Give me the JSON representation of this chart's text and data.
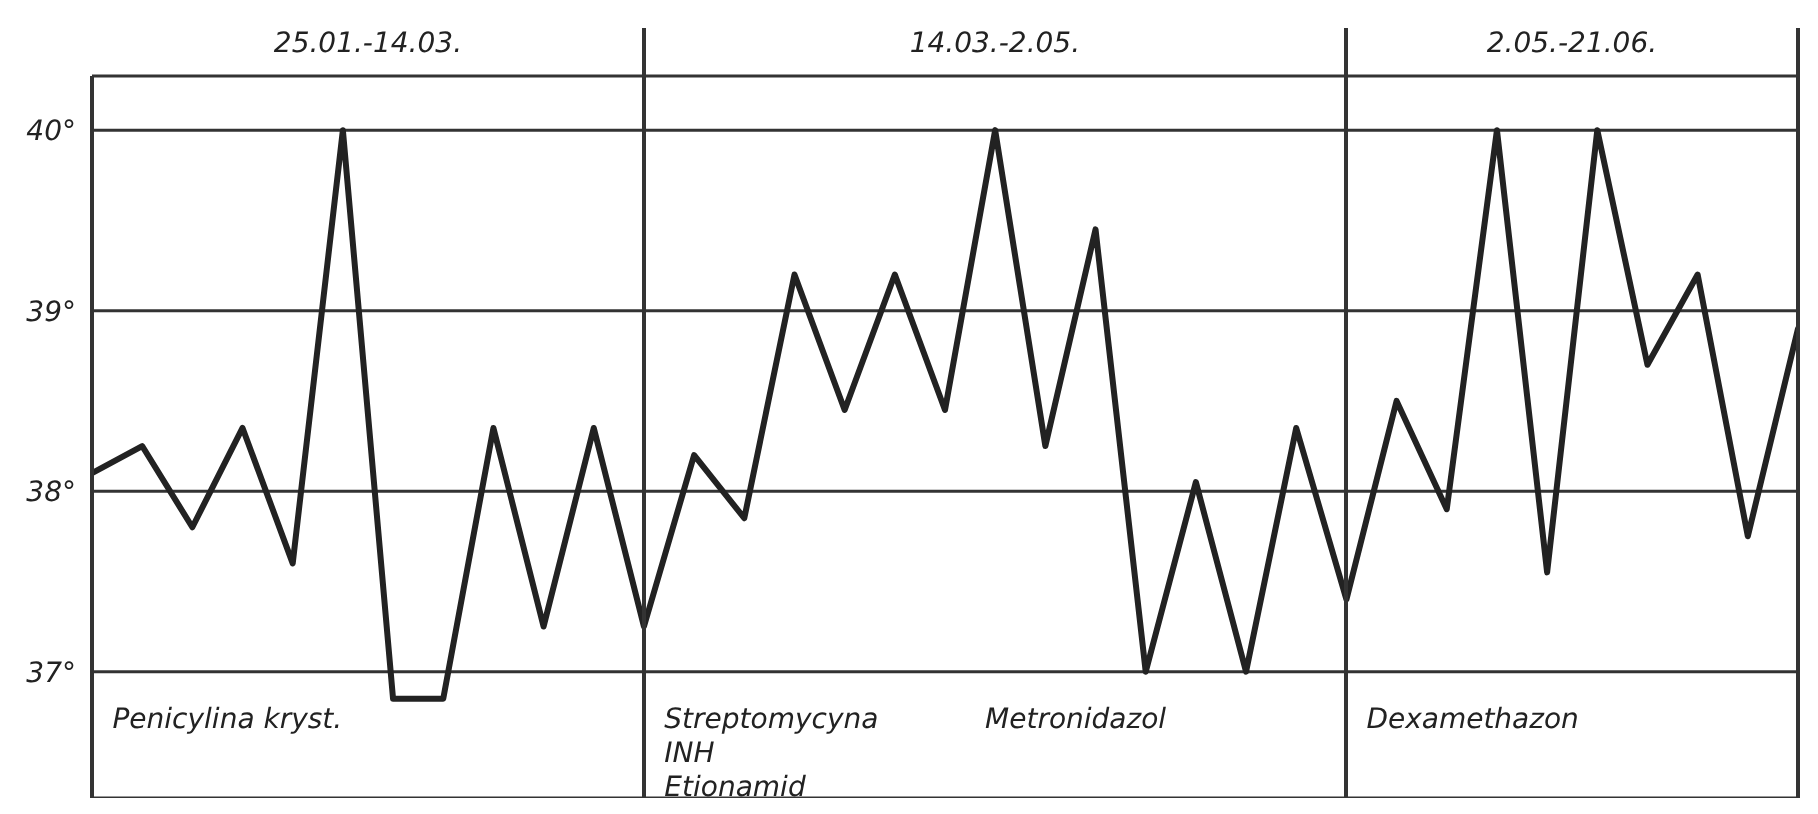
{
  "chart_data": {
    "type": "line",
    "categories": [
      null,
      null,
      null,
      null,
      null,
      null,
      null,
      null,
      null,
      null,
      null,
      null,
      null,
      null,
      null,
      null,
      null,
      null,
      null,
      null,
      null,
      null,
      null,
      null,
      null,
      null,
      null,
      null,
      null,
      null,
      null,
      null,
      null,
      null,
      null
    ],
    "series": [
      {
        "color": "#222222",
        "values": [
          38.1,
          38.25,
          37.8,
          38.35,
          37.6,
          40,
          36.85,
          36.85,
          38.35,
          37.25,
          38.35,
          37.25,
          38.2,
          37.85,
          39.2,
          38.45,
          39.2,
          38.45,
          40,
          38.25,
          39.45,
          37,
          38.05,
          37,
          38.35,
          37.4,
          38.5,
          37.9,
          40,
          37.55,
          40,
          38.7,
          39.2,
          37.75,
          38.9
        ]
      }
    ],
    "ylim": [
      36.3,
      40.3
    ],
    "yticks": [
      {
        "value": 37,
        "label": "37°"
      },
      {
        "value": 38,
        "label": "38°"
      },
      {
        "value": 39,
        "label": "39°"
      },
      {
        "value": 40,
        "label": "40°"
      }
    ],
    "tick_labels": "y",
    "grid": "y",
    "marker": "none",
    "line_style": "solid",
    "annotations": [
      "25.01.-14.03.",
      "14.03.-2.05.",
      "2.05.-21.06.",
      "Penicylina kryst.",
      "Streptomycyna\nINH\nEtionamid",
      "Metronidazol",
      "Dexamethazon"
    ]
  }
}
